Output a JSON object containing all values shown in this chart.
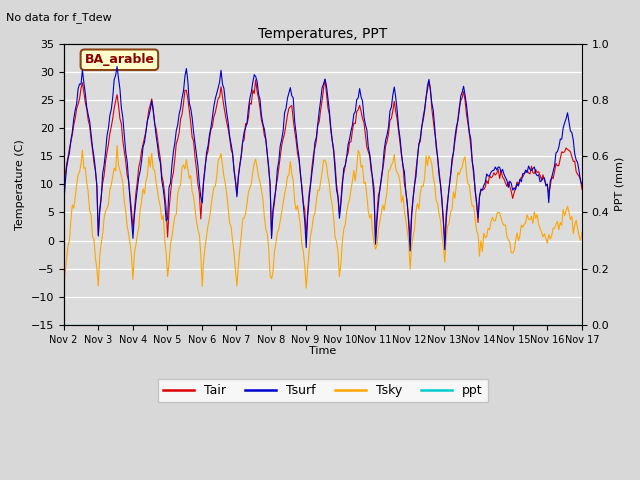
{
  "title": "Temperatures, PPT",
  "subtitle": "No data for f_Tdew",
  "xlabel": "Time",
  "ylabel_left": "Temperature (C)",
  "ylabel_right": "PPT (mm)",
  "site_label": "BA_arable",
  "ylim_left": [
    -15,
    35
  ],
  "ylim_right": [
    0.0,
    1.0
  ],
  "yticks_left": [
    -15,
    -10,
    -5,
    0,
    5,
    10,
    15,
    20,
    25,
    30,
    35
  ],
  "yticks_right": [
    0.0,
    0.2,
    0.4,
    0.6,
    0.8,
    1.0
  ],
  "xtick_labels": [
    "Nov 2",
    "Nov 3",
    "Nov 4",
    "Nov 5",
    "Nov 6",
    "Nov 7",
    "Nov 8",
    "Nov 9",
    "Nov 10",
    "Nov 11",
    "Nov 12",
    "Nov 13",
    "Nov 14",
    "Nov 15",
    "Nov 16",
    "Nov 17"
  ],
  "n_days": 15,
  "color_tair": "#dd0000",
  "color_tsurf": "#0000cc",
  "color_tsky": "#ffa500",
  "color_ppt": "#00cccc",
  "bg_color": "#dcdcdc",
  "fig_bg_color": "#d8d8d8",
  "legend_labels": [
    "Tair",
    "Tsurf",
    "Tsky",
    "ppt"
  ],
  "linewidth": 0.8,
  "tair_day_peaks": [
    28,
    26,
    25,
    27,
    27,
    28,
    25,
    28,
    24,
    25,
    28,
    27,
    12,
    13,
    17
  ],
  "tair_night_lows": [
    7,
    1,
    2,
    1,
    8,
    8,
    1,
    1,
    7,
    0,
    0,
    0,
    8,
    9,
    8
  ],
  "tsurf_day_peaks": [
    30,
    31,
    25,
    30,
    30,
    30,
    28,
    30,
    27,
    27,
    29,
    28,
    13,
    13,
    22
  ],
  "tsurf_night_lows": [
    6,
    0,
    0,
    4,
    7,
    7,
    0,
    -1,
    6,
    -1,
    -1,
    -1,
    8,
    9,
    7
  ],
  "tsky_day_peaks": [
    16,
    15,
    15,
    15,
    15,
    15,
    13,
    15,
    15,
    15,
    15,
    15,
    5,
    5,
    5
  ],
  "tsky_night_lows": [
    -10,
    -6,
    -6,
    -6,
    -8,
    -8,
    -8,
    -8,
    -3,
    -3,
    -4,
    -3,
    -3,
    -2,
    0
  ]
}
